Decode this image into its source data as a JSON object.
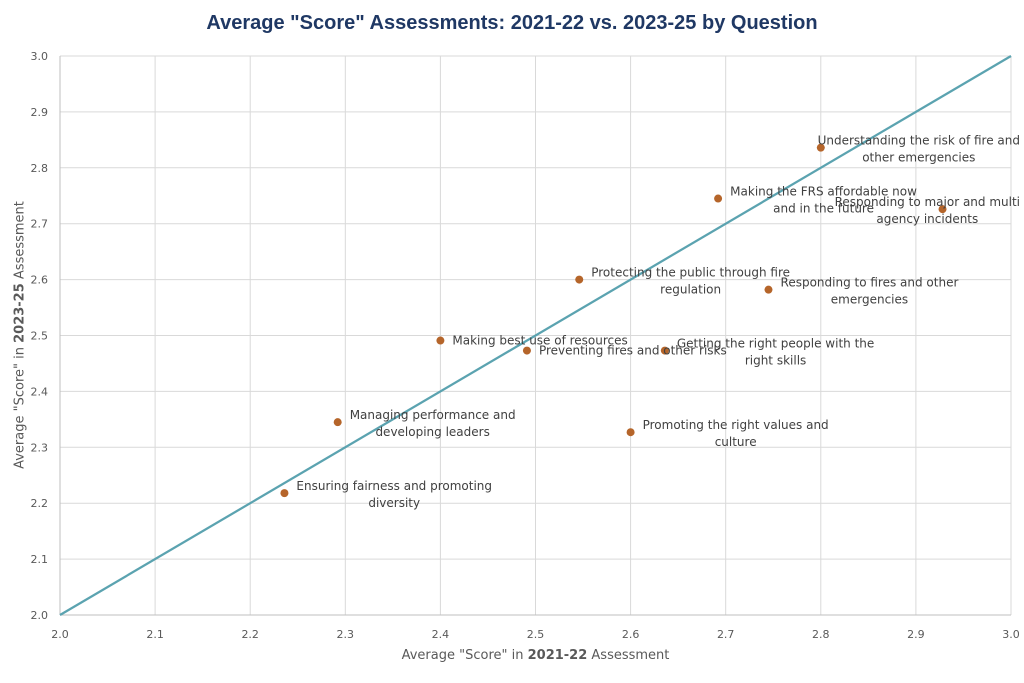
{
  "chart_data": {
    "type": "scatter",
    "title": "Average \"Score\" Assessments: 2021-22 vs. 2023-25 by Question",
    "xlabel": {
      "prefix": "Average \"Score\" in ",
      "emphasis": "2021-22",
      "suffix": " Assessment"
    },
    "ylabel": {
      "prefix": "Average \"Score\" in ",
      "emphasis": "2023-25",
      "suffix": " Assessment"
    },
    "xlim": [
      2.0,
      3.0
    ],
    "ylim": [
      2.0,
      3.0
    ],
    "xticks": [
      "2.0",
      "2.1",
      "2.2",
      "2.3",
      "2.4",
      "2.5",
      "2.6",
      "2.7",
      "2.8",
      "2.9",
      "3.0"
    ],
    "yticks": [
      "2.0",
      "2.1",
      "2.2",
      "2.3",
      "2.4",
      "2.5",
      "2.6",
      "2.7",
      "2.8",
      "2.9",
      "3.0"
    ],
    "grid": true,
    "reference_line": {
      "from": [
        2.0,
        2.0
      ],
      "to": [
        3.0,
        3.0
      ],
      "color": "#5ba3b0"
    },
    "point_color": "#b5652a",
    "points": [
      {
        "label": [
          "Understanding the risk of fire and",
          "other emergencies"
        ],
        "x": 2.8,
        "y": 2.836
      },
      {
        "label": [
          "Making the FRS affordable now",
          "and in the future"
        ],
        "x": 2.692,
        "y": 2.745
      },
      {
        "label": [
          "Responding to major and multi",
          "agency incidents"
        ],
        "x": 2.928,
        "y": 2.726
      },
      {
        "label": [
          "Protecting the public through fire",
          "regulation"
        ],
        "x": 2.546,
        "y": 2.6
      },
      {
        "label": [
          "Responding to fires and other",
          "emergencies"
        ],
        "x": 2.745,
        "y": 2.582
      },
      {
        "label": [
          "Making best use of resources"
        ],
        "x": 2.4,
        "y": 2.491
      },
      {
        "label": [
          "Preventing fires and other risks"
        ],
        "x": 2.491,
        "y": 2.473
      },
      {
        "label": [
          "Getting the right people with the",
          "right skills"
        ],
        "x": 2.636,
        "y": 2.473
      },
      {
        "label": [
          "Managing performance and",
          "developing leaders"
        ],
        "x": 2.292,
        "y": 2.345
      },
      {
        "label": [
          "Promoting the right values and",
          "culture"
        ],
        "x": 2.6,
        "y": 2.327
      },
      {
        "label": [
          "Ensuring fairness and promoting",
          "diversity"
        ],
        "x": 2.236,
        "y": 2.218
      }
    ]
  }
}
